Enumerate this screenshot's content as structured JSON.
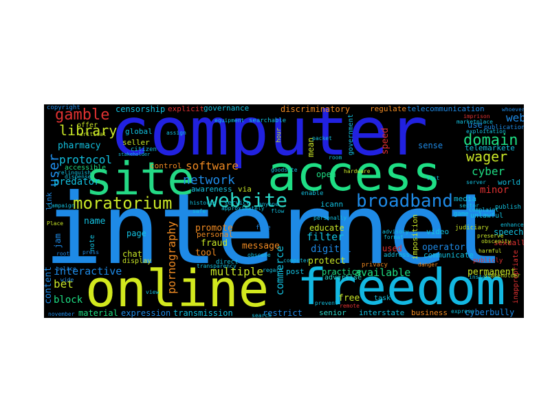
{
  "words": {
    "internet": "internet",
    "computer": "computer",
    "access": "access",
    "site": "site",
    "online": "online",
    "freedom": "freedom",
    "website": "website",
    "broadband": "broadband",
    "moratorium": "moratorium",
    "domain": "domain",
    "network": "network",
    "gamble": "gamble",
    "library": "library",
    "protocol": "protocol",
    "software": "software",
    "user": "user",
    "wager": "wager",
    "web": "web",
    "cyber": "cyber",
    "minor": "minor",
    "predator": "predator",
    "pharmacy": "pharmacy",
    "interactive": "interactive",
    "name": "name",
    "bet": "bet",
    "block": "block",
    "content": "content",
    "material": "material",
    "expression": "expression",
    "transmission": "transmission",
    "restrict": "restrict",
    "senior": "senior",
    "interstate": "interstate",
    "business": "business",
    "cyberbully": "cyberbully",
    "available": "available",
    "permanent": "permanent",
    "pornography": "pornography",
    "commerce": "commerce",
    "multiple": "multiple",
    "message": "message",
    "fraud": "fraud",
    "promote": "promote",
    "tool": "tool",
    "filter": "filter",
    "digital": "digital",
    "protect": "protect",
    "educate": "educate",
    "practice": "practice",
    "free": "free",
    "used": "used",
    "operator": "operator",
    "communicate": "communicate",
    "speech": "speech",
    "sexually": "sexually",
    "video": "video",
    "censorship": "censorship",
    "governance": "governance",
    "discriminatory": "discriminatory",
    "regulate": "regulate",
    "telecommunication": "telecommunication",
    "explicit": "explicit",
    "copyright": "copyright",
    "offer": "offer",
    "global": "global",
    "seller": "seller",
    "citizen": "citizen",
    "control": "control",
    "accessible": "accessible",
    "awareness": "awareness",
    "via": "via",
    "open": "open",
    "icann": "icann",
    "use": "use",
    "publication": "publication",
    "telemarkete": "telemarkete",
    "world": "world",
    "media": "media",
    "unlawful": "unlawful",
    "speed": "speed",
    "sense": "sense",
    "mean": "mean",
    "government": "government",
    "imposition": "imposition",
    "page": "page",
    "chat": "chat",
    "display": "display",
    "personal": "personal",
    "post": "post",
    "advertise": "advertise",
    "task": "task",
    "address": "address",
    "privacy": "privacy",
    "publicly": "publicly",
    "judiciary": "judiciary",
    "link": "link",
    "jam": "jam",
    "note": "note",
    "campaign": "Campaign",
    "remote": "remote",
    "file": "file",
    "list": "list",
    "enable": "enable",
    "hour": "hour",
    "game": "game",
    "server": "server",
    "publish": "publish",
    "inappropriate": "inappropriate",
    "harmful": "harmful",
    "preserve": "preserve",
    "obscenity": "obscenity",
    "november": "november",
    "express": "express",
    "danger": "danger",
    "direct": "direct",
    "prevent": "prevent",
    "service": "service",
    "sector": "sector",
    "imprison": "imprison",
    "whoever": "whoever",
    "flow": "flow",
    "hardware": "hardware",
    "packet": "packet",
    "critical": "critical",
    "offer2": "assign",
    "historic": "historic",
    "approximately": "approximately",
    "safe": "safe",
    "stakeholder": "stakeholder",
    "goodsite": "goodsite",
    "room": "room",
    "wide": "wide",
    "press": "press",
    "police": "police",
    "format": "format",
    "advisory": "advisory",
    "personally": "personally",
    "obscene": "obscene",
    "view": "view",
    "plan": "Place",
    "root": "root",
    "transparency": "transparency",
    "installment": "install",
    "computer2": "computer",
    "dispense": "dispense",
    "relinquish": "relinquish",
    "equipment": "equipment",
    "searchable": "searchable",
    "copyright2": "anyone",
    "regard": "regard",
    "search": "search",
    "enhance": "enhance",
    "exploitation": "exploitation",
    "marketplace": "marketplace",
    "complaint": "complaint",
    "stakeholder2": "stakeholder"
  },
  "colors": {
    "background": "#000000",
    "page": "#ffffff",
    "blue": "#1e1ee6",
    "lightblue": "#1e90f0",
    "cyan": "#13c1e0",
    "green": "#21d97a",
    "yellow": "#c9e627",
    "red": "#e03232",
    "orange": "#ef8a22",
    "yellowgreen": "#b9e23a",
    "purple": "#5a2cff",
    "teal": "#2fbfb5"
  }
}
